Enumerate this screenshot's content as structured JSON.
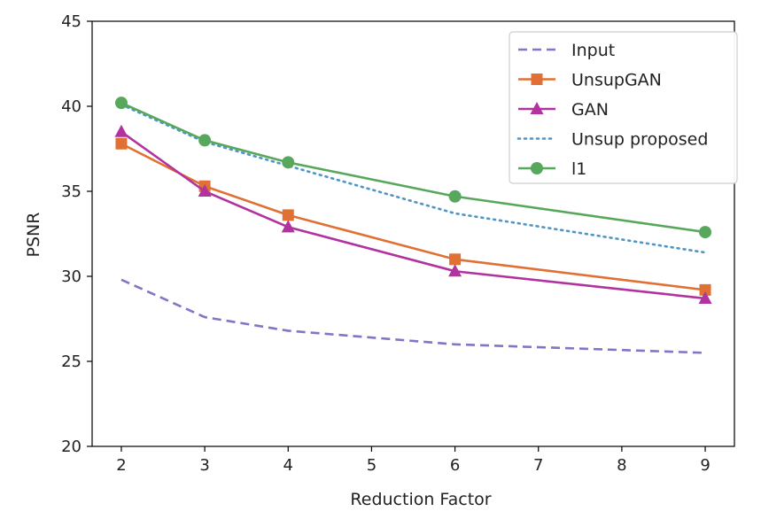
{
  "chart_data": {
    "type": "line",
    "title": "",
    "xlabel": "Reduction Factor",
    "ylabel": "PSNR",
    "x": [
      2,
      3,
      4,
      6,
      9
    ],
    "xlim": [
      1.65,
      9.35
    ],
    "ylim": [
      20,
      45
    ],
    "xticks": [
      2,
      3,
      4,
      5,
      6,
      7,
      8,
      9
    ],
    "yticks": [
      20,
      25,
      30,
      35,
      40,
      45
    ],
    "grid": false,
    "legend_position": "top-right",
    "series": [
      {
        "name": "Input",
        "values": [
          29.8,
          27.6,
          26.8,
          26.0,
          25.5
        ],
        "color": "#8175c7",
        "dash": "dashed",
        "marker": "none"
      },
      {
        "name": "UnsupGAN",
        "values": [
          37.8,
          35.3,
          33.6,
          31.0,
          29.2
        ],
        "color": "#e07033",
        "dash": "solid",
        "marker": "square"
      },
      {
        "name": "GAN",
        "values": [
          38.5,
          35.0,
          32.9,
          30.3,
          28.7
        ],
        "color": "#b232a0",
        "dash": "solid",
        "marker": "triangle"
      },
      {
        "name": "Unsup proposed",
        "values": [
          40.1,
          37.9,
          36.5,
          33.7,
          31.4
        ],
        "color": "#4f96c8",
        "dash": "dotted",
        "marker": "none"
      },
      {
        "name": "l1",
        "values": [
          40.2,
          38.0,
          36.7,
          34.7,
          32.6
        ],
        "color": "#57a85c",
        "dash": "solid",
        "marker": "circle"
      }
    ]
  }
}
